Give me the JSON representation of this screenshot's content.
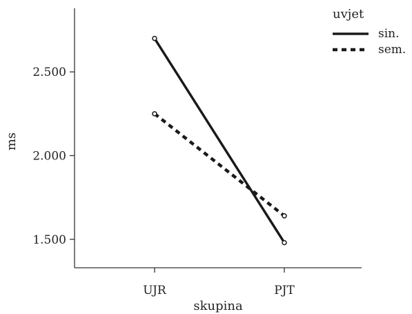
{
  "chart_data": {
    "type": "line",
    "categories": [
      "UJR",
      "PJT"
    ],
    "series": [
      {
        "name": "sin.",
        "values": [
          2700,
          1480
        ],
        "style": "solid"
      },
      {
        "name": "sem.",
        "values": [
          2250,
          1640
        ],
        "style": "dashed"
      }
    ],
    "xlabel": "skupina",
    "ylabel": "ms",
    "yticks": [
      1500,
      2000,
      2500
    ],
    "ytick_labels": [
      "1.500",
      "2.000",
      "2.500"
    ],
    "ylim": [
      1330,
      2880
    ],
    "legend": {
      "title": "uvjet",
      "placement": "top-right"
    },
    "grid": false,
    "colors": {
      "line": "#1a1a1a",
      "axis": "#333333"
    }
  }
}
